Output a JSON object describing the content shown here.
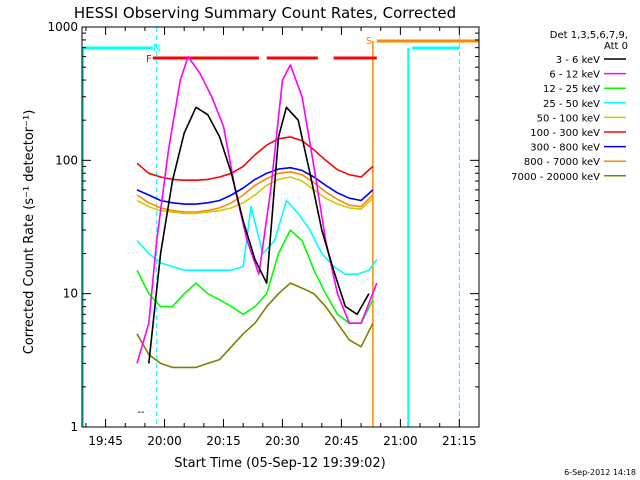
{
  "chart_data": {
    "type": "line",
    "title": "HESSI Observing Summary Count Rates, Corrected",
    "xlabel": "Start Time (05-Sep-12 19:39:02)",
    "ylabel": "Corrected Count Rate (s⁻¹ detector⁻¹)",
    "yscale": "log",
    "ylim": [
      1,
      1000
    ],
    "xlim": [
      "19:39",
      "21:20"
    ],
    "x_ticks": [
      "19:45",
      "20:00",
      "20:15",
      "20:30",
      "20:45",
      "21:00",
      "21:15"
    ],
    "y_ticks": [
      "1",
      "10",
      "100",
      "1000"
    ],
    "grid": false,
    "legend": {
      "placement": "right",
      "header_lines": [
        "Det 1,3,5,6,7,9,",
        "Att 0"
      ]
    },
    "timestamp": "6-Sep-2012 14:18",
    "annotations": [
      {
        "text": "F",
        "color": "#ff0000",
        "x": "19:56"
      },
      {
        "text": "N",
        "color": "#00ffff",
        "x": "19:58"
      },
      {
        "text": "S",
        "color": "#ff8800",
        "x": "20:52"
      },
      {
        "text": "--",
        "color": "#000000",
        "x": "19:54"
      }
    ],
    "flags": {
      "flare_bars": [
        [
          "19:57",
          "20:24"
        ],
        [
          "20:26",
          "20:39"
        ],
        [
          "20:43",
          "20:54"
        ]
      ],
      "saa_bar": [
        "20:54",
        "21:20"
      ],
      "night_bars": [
        [
          "19:39",
          "19:57"
        ],
        [
          "21:03",
          "21:15"
        ]
      ],
      "night_dashed_lines": [
        "19:58",
        "21:15"
      ],
      "solid_cyan_line": "21:02",
      "saa_vertical_line": "20:53"
    },
    "series": [
      {
        "name": "3 - 6 keV",
        "color": "#000000",
        "x": [
          "19:53",
          "19:56",
          "19:59",
          "20:02",
          "20:05",
          "20:08",
          "20:11",
          "20:14",
          "20:17",
          "20:20",
          "20:23",
          "20:26",
          "20:29",
          "20:31",
          "20:34",
          "20:37",
          "20:40",
          "20:43",
          "20:46",
          "20:49",
          "20:52",
          "20:54"
        ],
        "y": [
          null,
          3,
          20,
          70,
          160,
          250,
          220,
          150,
          80,
          35,
          18,
          12,
          150,
          250,
          200,
          80,
          30,
          15,
          8,
          7,
          10,
          null
        ]
      },
      {
        "name": "6 - 12 keV",
        "color": "#ff00ff",
        "x": [
          "19:53",
          "19:56",
          "19:58",
          "20:01",
          "20:04",
          "20:06",
          "20:09",
          "20:12",
          "20:15",
          "20:18",
          "20:21",
          "20:24",
          "20:27",
          "20:30",
          "20:32",
          "20:35",
          "20:38",
          "20:41",
          "20:44",
          "20:47",
          "20:50",
          "20:54"
        ],
        "y": [
          3,
          6,
          25,
          120,
          400,
          600,
          450,
          300,
          180,
          60,
          25,
          14,
          60,
          400,
          520,
          300,
          90,
          25,
          10,
          6,
          6,
          12
        ]
      },
      {
        "name": "12 - 25 keV",
        "color": "#00ff00",
        "x": [
          "19:53",
          "19:56",
          "19:59",
          "20:02",
          "20:05",
          "20:08",
          "20:11",
          "20:14",
          "20:17",
          "20:20",
          "20:23",
          "20:26",
          "20:29",
          "20:32",
          "20:35",
          "20:38",
          "20:41",
          "20:44",
          "20:47",
          "20:50",
          "20:53"
        ],
        "y": [
          15,
          10,
          8,
          8,
          10,
          12,
          10,
          9,
          8,
          7,
          8,
          10,
          20,
          30,
          25,
          15,
          10,
          7,
          6,
          6,
          9
        ]
      },
      {
        "name": "25 - 50 keV",
        "color": "#00ffff",
        "x": [
          "19:53",
          "19:56",
          "19:59",
          "20:02",
          "20:05",
          "20:08",
          "20:11",
          "20:14",
          "20:17",
          "20:20",
          "20:22",
          "20:25",
          "20:28",
          "20:31",
          "20:34",
          "20:37",
          "20:40",
          "20:43",
          "20:46",
          "20:49",
          "20:52",
          "20:54"
        ],
        "y": [
          25,
          20,
          17,
          16,
          15,
          15,
          15,
          15,
          15,
          16,
          45,
          20,
          25,
          50,
          40,
          30,
          20,
          16,
          14,
          14,
          15,
          18
        ]
      },
      {
        "name": "50 - 100 keV",
        "color": "#cccc00",
        "x": [
          "19:53",
          "19:56",
          "19:59",
          "20:02",
          "20:05",
          "20:08",
          "20:11",
          "20:14",
          "20:17",
          "20:20",
          "20:23",
          "20:26",
          "20:29",
          "20:32",
          "20:35",
          "20:38",
          "20:41",
          "20:44",
          "20:47",
          "20:50",
          "20:53"
        ],
        "y": [
          50,
          45,
          42,
          41,
          40,
          40,
          41,
          42,
          44,
          48,
          55,
          65,
          72,
          75,
          70,
          60,
          52,
          47,
          44,
          43,
          52
        ]
      },
      {
        "name": "100 - 300 keV",
        "color": "#ff0000",
        "x": [
          "19:53",
          "19:56",
          "19:59",
          "20:02",
          "20:05",
          "20:08",
          "20:11",
          "20:14",
          "20:17",
          "20:20",
          "20:23",
          "20:26",
          "20:29",
          "20:32",
          "20:35",
          "20:38",
          "20:41",
          "20:44",
          "20:47",
          "20:50",
          "20:53"
        ],
        "y": [
          95,
          80,
          75,
          72,
          71,
          71,
          72,
          75,
          80,
          90,
          110,
          130,
          145,
          150,
          140,
          120,
          100,
          85,
          78,
          75,
          90
        ]
      },
      {
        "name": "300 - 800 keV",
        "color": "#0000ff",
        "x": [
          "19:53",
          "19:56",
          "19:59",
          "20:02",
          "20:05",
          "20:08",
          "20:11",
          "20:14",
          "20:17",
          "20:20",
          "20:23",
          "20:26",
          "20:29",
          "20:32",
          "20:35",
          "20:38",
          "20:41",
          "20:44",
          "20:47",
          "20:50",
          "20:53"
        ],
        "y": [
          60,
          55,
          50,
          48,
          47,
          47,
          48,
          50,
          55,
          62,
          72,
          80,
          86,
          88,
          84,
          75,
          65,
          57,
          52,
          50,
          60
        ]
      },
      {
        "name": "800 - 7000 keV",
        "color": "#ff8800",
        "x": [
          "19:53",
          "19:56",
          "19:59",
          "20:02",
          "20:05",
          "20:08",
          "20:11",
          "20:14",
          "20:17",
          "20:20",
          "20:23",
          "20:26",
          "20:29",
          "20:32",
          "20:35",
          "20:38",
          "20:41",
          "20:44",
          "20:47",
          "20:50",
          "20:53"
        ],
        "y": [
          55,
          48,
          44,
          42,
          41,
          41,
          42,
          44,
          48,
          55,
          65,
          73,
          80,
          82,
          78,
          68,
          58,
          51,
          46,
          45,
          55
        ]
      },
      {
        "name": "7000 - 20000 keV",
        "color": "#808000",
        "x": [
          "19:53",
          "19:56",
          "19:59",
          "20:02",
          "20:05",
          "20:08",
          "20:11",
          "20:14",
          "20:17",
          "20:20",
          "20:23",
          "20:26",
          "20:29",
          "20:32",
          "20:35",
          "20:38",
          "20:41",
          "20:44",
          "20:47",
          "20:50",
          "20:53"
        ],
        "y": [
          5,
          3.5,
          3,
          2.8,
          2.8,
          2.8,
          3,
          3.2,
          4,
          5,
          6,
          8,
          10,
          12,
          11,
          10,
          8,
          6,
          4.5,
          4,
          6
        ]
      }
    ]
  }
}
